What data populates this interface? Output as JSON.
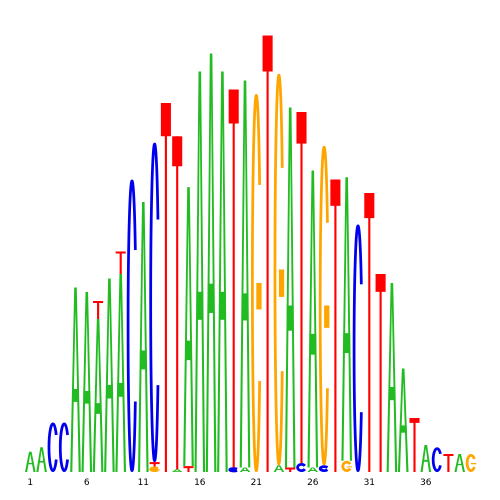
{
  "chart_data": {
    "type": "sequence-logo",
    "alphabet": [
      "A",
      "C",
      "G",
      "T"
    ],
    "letter_colors": {
      "A": "#22bb22",
      "C": "#0000ee",
      "G": "#ffa500",
      "T": "#ff0000"
    },
    "x_tick_labels": [
      "1",
      "6",
      "11",
      "16",
      "21",
      "26",
      "31",
      "36"
    ],
    "x_tick_positions": [
      1,
      6,
      11,
      16,
      21,
      26,
      31,
      36
    ],
    "num_positions": 40,
    "ylim": [
      0,
      1
    ],
    "columns": [
      {
        "position": 1,
        "stack": [
          [
            "A",
            0.045
          ]
        ]
      },
      {
        "position": 2,
        "stack": [
          [
            "A",
            0.055
          ]
        ]
      },
      {
        "position": 3,
        "stack": [
          [
            "C",
            0.11
          ]
        ]
      },
      {
        "position": 4,
        "stack": [
          [
            "C",
            0.11
          ]
        ]
      },
      {
        "position": 5,
        "stack": [
          [
            "A",
            0.41
          ]
        ]
      },
      {
        "position": 6,
        "stack": [
          [
            "A",
            0.4
          ]
        ]
      },
      {
        "position": 7,
        "stack": [
          [
            "A",
            0.34
          ],
          [
            "T",
            0.04
          ]
        ]
      },
      {
        "position": 8,
        "stack": [
          [
            "A",
            0.43
          ]
        ]
      },
      {
        "position": 9,
        "stack": [
          [
            "A",
            0.44
          ],
          [
            "T",
            0.05
          ]
        ]
      },
      {
        "position": 10,
        "stack": [
          [
            "C",
            0.65
          ]
        ]
      },
      {
        "position": 11,
        "stack": [
          [
            "A",
            0.6
          ]
        ]
      },
      {
        "position": 12,
        "stack": [
          [
            "G",
            0.012
          ],
          [
            "T",
            0.01
          ],
          [
            "C",
            0.71
          ]
        ]
      },
      {
        "position": 13,
        "stack": [
          [
            "T",
            0.82
          ]
        ]
      },
      {
        "position": 14,
        "stack": [
          [
            "A",
            0.006
          ],
          [
            "T",
            0.74
          ]
        ]
      },
      {
        "position": 15,
        "stack": [
          [
            "T",
            0.013
          ],
          [
            "A",
            0.62
          ]
        ]
      },
      {
        "position": 16,
        "stack": [
          [
            "A",
            0.89
          ]
        ]
      },
      {
        "position": 17,
        "stack": [
          [
            "A",
            0.93
          ]
        ]
      },
      {
        "position": 18,
        "stack": [
          [
            "A",
            0.89
          ]
        ]
      },
      {
        "position": 19,
        "stack": [
          [
            "C",
            0.01
          ],
          [
            "T",
            0.84
          ]
        ]
      },
      {
        "position": 20,
        "stack": [
          [
            "A",
            0.01
          ],
          [
            "A",
            0.86
          ]
        ]
      },
      {
        "position": 21,
        "stack": [
          [
            "G",
            0.84
          ]
        ]
      },
      {
        "position": 22,
        "stack": [
          [
            "T",
            0.97
          ]
        ]
      },
      {
        "position": 23,
        "stack": [
          [
            "A",
            0.015
          ],
          [
            "G",
            0.87
          ]
        ]
      },
      {
        "position": 24,
        "stack": [
          [
            "T",
            0.01
          ],
          [
            "A",
            0.8
          ]
        ]
      },
      {
        "position": 25,
        "stack": [
          [
            "C",
            0.02
          ],
          [
            "T",
            0.78
          ]
        ]
      },
      {
        "position": 26,
        "stack": [
          [
            "A",
            0.01
          ],
          [
            "A",
            0.66
          ]
        ]
      },
      {
        "position": 27,
        "stack": [
          [
            "C",
            0.015
          ],
          [
            "G",
            0.71
          ]
        ]
      },
      {
        "position": 28,
        "stack": [
          [
            "T",
            0.65
          ]
        ]
      },
      {
        "position": 29,
        "stack": [
          [
            "G",
            0.025
          ],
          [
            "A",
            0.63
          ]
        ]
      },
      {
        "position": 30,
        "stack": [
          [
            "C",
            0.55
          ]
        ]
      },
      {
        "position": 31,
        "stack": [
          [
            "T",
            0.62
          ]
        ]
      },
      {
        "position": 32,
        "stack": [
          [
            "T",
            0.44
          ]
        ]
      },
      {
        "position": 33,
        "stack": [
          [
            "A",
            0.42
          ]
        ]
      },
      {
        "position": 34,
        "stack": [
          [
            "A",
            0.23
          ]
        ]
      },
      {
        "position": 35,
        "stack": [
          [
            "T",
            0.12
          ]
        ]
      },
      {
        "position": 36,
        "stack": [
          [
            "A",
            0.06
          ]
        ]
      },
      {
        "position": 37,
        "stack": [
          [
            "C",
            0.055
          ]
        ]
      },
      {
        "position": 38,
        "stack": [
          [
            "T",
            0.04
          ]
        ]
      },
      {
        "position": 39,
        "stack": [
          [
            "A",
            0.04
          ]
        ]
      },
      {
        "position": 40,
        "stack": [
          [
            "G",
            0.04
          ]
        ]
      }
    ]
  }
}
